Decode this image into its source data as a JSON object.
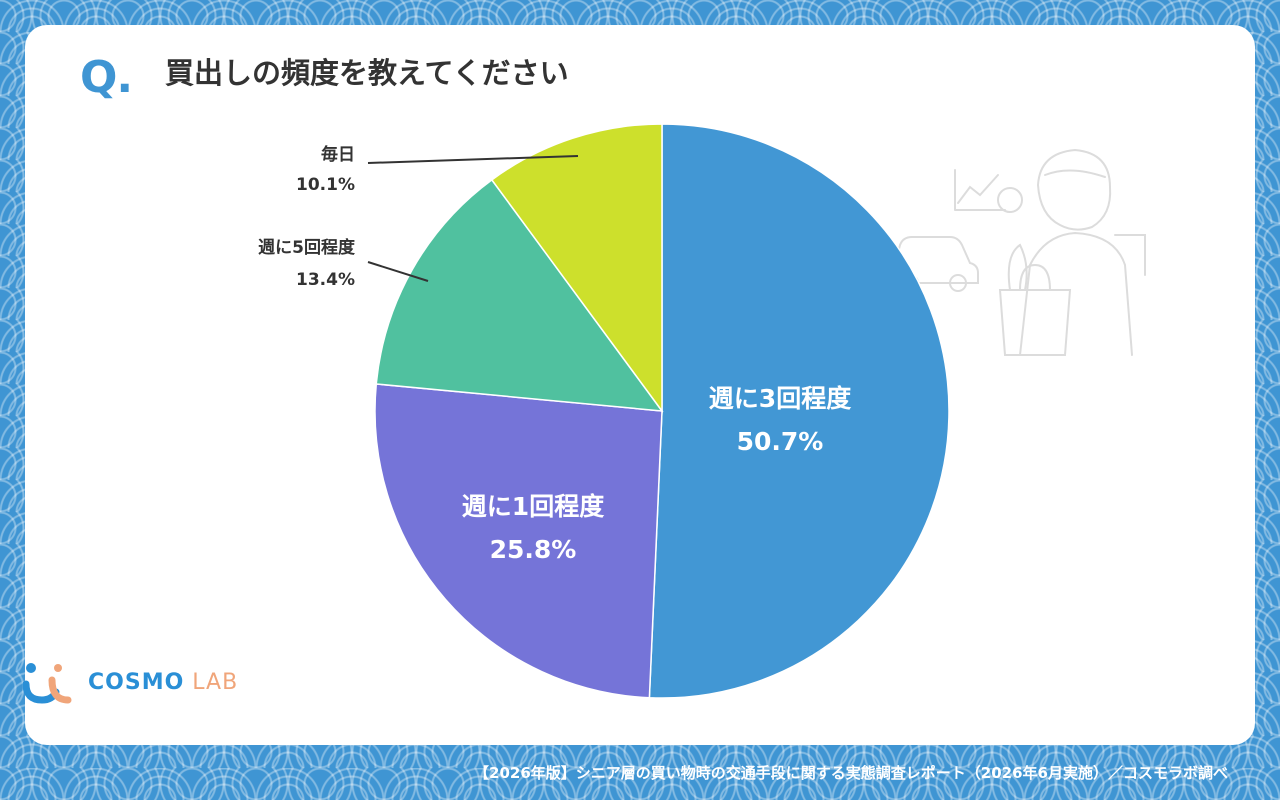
{
  "question_mark": "Q.",
  "title": "買出しの頻度を教えてください",
  "chart_data": {
    "type": "pie",
    "title": "買出しの頻度を教えてください",
    "slices": [
      {
        "label": "週に3回程度",
        "value": 50.7,
        "value_label": "50.7%",
        "color": "#4297d4"
      },
      {
        "label": "週に1回程度",
        "value": 25.8,
        "value_label": "25.8%",
        "color": "#7574d8"
      },
      {
        "label": "週に5回程度",
        "value": 13.4,
        "value_label": "13.4%",
        "color": "#50c19f"
      },
      {
        "label": "毎日",
        "value": 10.1,
        "value_label": "10.1%",
        "color": "#cde02c"
      }
    ]
  },
  "logo": {
    "brand": "COSMO",
    "suffix": "LAB"
  },
  "footer": "【2026年版】シニア層の買い物時の交通手段に関する実態調査レポート（2026年6月実施）／コスモラボ調べ"
}
